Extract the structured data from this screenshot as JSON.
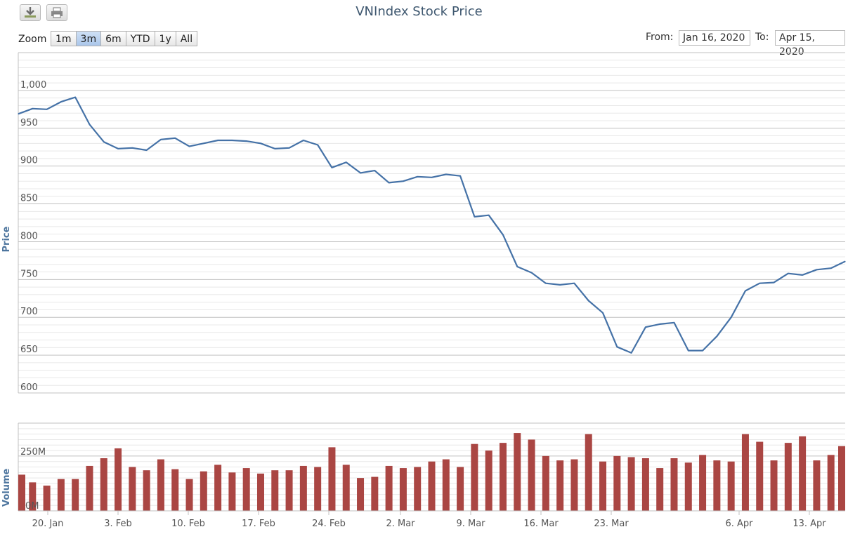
{
  "title": "VNIndex Stock Price",
  "toolbar": {
    "download_icon": "download-icon",
    "print_icon": "print-icon"
  },
  "zoom": {
    "label": "Zoom",
    "buttons": [
      "1m",
      "3m",
      "6m",
      "YTD",
      "1y",
      "All"
    ],
    "active": "3m"
  },
  "range": {
    "from_label": "From:",
    "from_value": "Jan 16, 2020",
    "to_label": "To:",
    "to_value": "Apr 15, 2020"
  },
  "colors": {
    "line": "#4572a7",
    "bar": "#aa4643",
    "axis_title": "#4d759e"
  },
  "chart_data": [
    {
      "type": "line",
      "ylabel": "Price",
      "ylim": [
        600,
        1050
      ],
      "y_ticks": [
        "600",
        "650",
        "700",
        "750",
        "800",
        "850",
        "900",
        "950",
        "1,000"
      ],
      "x_ticks": [
        "20. Jan",
        "3. Feb",
        "10. Feb",
        "17. Feb",
        "24. Feb",
        "2. Mar",
        "9. Mar",
        "16. Mar",
        "23. Mar",
        "6. Apr",
        "13. Apr"
      ],
      "series": [
        {
          "values": [
            969,
            976,
            975,
            985,
            991,
            955,
            932,
            923,
            924,
            921,
            935,
            937,
            926,
            930,
            934,
            934,
            933,
            930,
            923,
            924,
            934,
            928,
            898,
            905,
            891,
            894,
            878,
            880,
            886,
            885,
            889,
            887,
            833,
            835,
            809,
            767,
            759,
            745,
            743,
            745,
            722,
            706,
            661,
            653,
            687,
            691,
            693,
            656,
            656,
            675,
            700,
            735,
            745,
            746,
            758,
            756,
            763,
            765,
            774
          ]
        }
      ]
    },
    {
      "type": "bar",
      "ylabel": "Volume",
      "y_ticks": [
        "0M",
        "250M"
      ],
      "series": [
        {
          "values": [
            165,
            130,
            115,
            145,
            145,
            205,
            240,
            285,
            200,
            185,
            235,
            190,
            145,
            180,
            210,
            175,
            195,
            170,
            185,
            185,
            205,
            200,
            290,
            210,
            150,
            155,
            205,
            195,
            200,
            225,
            235,
            200,
            305,
            275,
            310,
            355,
            325,
            250,
            230,
            235,
            350,
            225,
            250,
            245,
            240,
            195,
            240,
            220,
            255,
            230,
            225,
            350,
            315,
            230,
            310,
            340,
            230,
            255,
            295
          ]
        }
      ]
    }
  ]
}
